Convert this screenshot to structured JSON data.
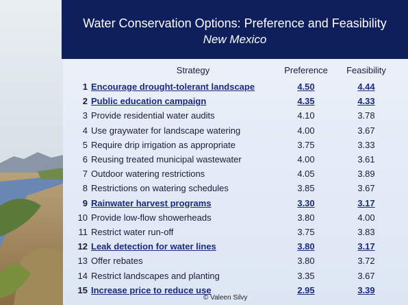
{
  "header": {
    "title": "Water Conservation Options: Preference and Feasibility",
    "subtitle": "New Mexico"
  },
  "table": {
    "columns": [
      "Strategy",
      "Preference",
      "Feasibility"
    ],
    "rows": [
      {
        "number": "1",
        "strategy": "Encourage drought-tolerant landscape",
        "preference": "4.50",
        "feasibility": "4.44",
        "emphasis": true
      },
      {
        "number": "2",
        "strategy": "Public education campaign",
        "preference": "4.35",
        "feasibility": "4.33",
        "emphasis": true
      },
      {
        "number": "3",
        "strategy": "Provide residential water audits",
        "preference": "4.10",
        "feasibility": "3.78",
        "emphasis": false
      },
      {
        "number": "4",
        "strategy": "Use graywater for landscape watering",
        "preference": "4.00",
        "feasibility": "3.67",
        "emphasis": false
      },
      {
        "number": "5",
        "strategy": "Require drip irrigation as appropriate",
        "preference": "3.75",
        "feasibility": "3.33",
        "emphasis": false
      },
      {
        "number": "6",
        "strategy": "Reusing treated municipal wastewater",
        "preference": "4.00",
        "feasibility": "3.61",
        "emphasis": false
      },
      {
        "number": "7",
        "strategy": "Outdoor watering restrictions",
        "preference": "4.05",
        "feasibility": "3.89",
        "emphasis": false
      },
      {
        "number": "8",
        "strategy": "Restrictions on watering schedules",
        "preference": "3.85",
        "feasibility": "3.67",
        "emphasis": false
      },
      {
        "number": "9",
        "strategy": "Rainwater harvest programs",
        "preference": "3.30",
        "feasibility": "3.17",
        "emphasis": true
      },
      {
        "number": "10",
        "strategy": "Provide low-flow showerheads",
        "preference": "3.80",
        "feasibility": "4.00",
        "emphasis": false
      },
      {
        "number": "11",
        "strategy": "Restrict water run-off",
        "preference": "3.75",
        "feasibility": "3.83",
        "emphasis": false
      },
      {
        "number": "12",
        "strategy": "Leak detection for water lines",
        "preference": "3.80",
        "feasibility": "3.17",
        "emphasis": true
      },
      {
        "number": "13",
        "strategy": "Offer rebates",
        "preference": "3.80",
        "feasibility": "3.72",
        "emphasis": false
      },
      {
        "number": "14",
        "strategy": "Restrict landscapes and planting",
        "preference": "3.35",
        "feasibility": "3.67",
        "emphasis": false
      },
      {
        "number": "15",
        "strategy": "Increase price to reduce use",
        "preference": "2.95",
        "feasibility": "3.39",
        "emphasis": true
      }
    ]
  },
  "footer": {
    "credit": "© Valeen Silvy"
  }
}
